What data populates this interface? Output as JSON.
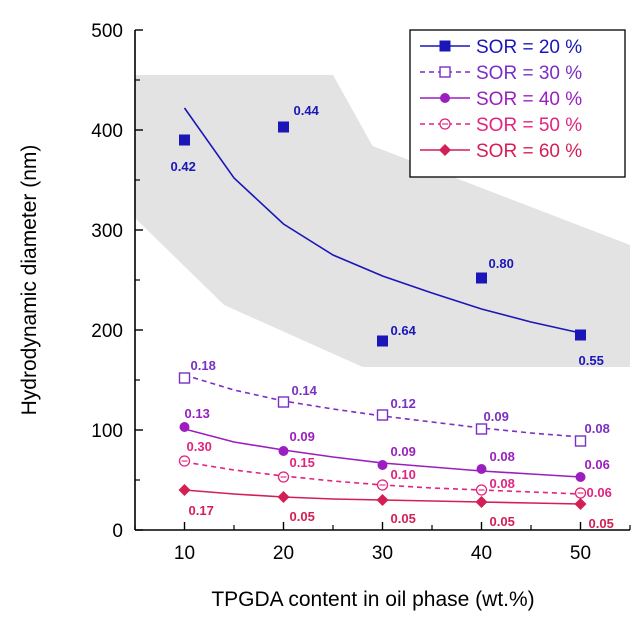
{
  "chart_data": {
    "type": "scatter",
    "xlabel": "TPGDA content in oil phase  (wt.%)",
    "ylabel": "Hydrodynamic diameter  (nm)",
    "xlim": [
      5,
      55
    ],
    "ylim": [
      0,
      500
    ],
    "x_ticks": [
      "10",
      "20",
      "30",
      "40",
      "50"
    ],
    "y_ticks": [
      "0",
      "100",
      "200",
      "300",
      "400",
      "500"
    ],
    "grid": false,
    "legend_position": "top-right",
    "shaded_region": [
      [
        5,
        455
      ],
      [
        25,
        455
      ],
      [
        29,
        384
      ],
      [
        55,
        285
      ],
      [
        55,
        163
      ],
      [
        28,
        163
      ],
      [
        14,
        225
      ],
      [
        5,
        312
      ]
    ],
    "series": [
      {
        "name": "SOR = 20 %",
        "color": "#1a16b8",
        "marker": "square-filled",
        "line": "solid",
        "x": [
          10,
          20,
          30,
          40,
          50
        ],
        "y": [
          390,
          403,
          189,
          252,
          195
        ],
        "labels": [
          "0.42",
          "0.44",
          "0.64",
          "0.80",
          "0.55"
        ],
        "fit": [
          [
            10,
            422
          ],
          [
            15,
            352
          ],
          [
            20,
            306
          ],
          [
            25,
            275
          ],
          [
            30,
            254
          ],
          [
            35,
            237
          ],
          [
            40,
            221
          ],
          [
            45,
            208
          ],
          [
            50,
            197
          ]
        ]
      },
      {
        "name": "SOR = 30 %",
        "color": "#7b2fc3",
        "marker": "square-open",
        "line": "dashed",
        "x": [
          10,
          20,
          30,
          40,
          50
        ],
        "y": [
          152,
          128,
          115,
          101,
          89
        ],
        "labels": [
          "0.18",
          "0.14",
          "0.12",
          "0.09",
          "0.08"
        ],
        "fit": [
          [
            10,
            155
          ],
          [
            15,
            140
          ],
          [
            20,
            129
          ],
          [
            25,
            121
          ],
          [
            30,
            114
          ],
          [
            35,
            108
          ],
          [
            40,
            102
          ],
          [
            45,
            97
          ],
          [
            50,
            93
          ]
        ]
      },
      {
        "name": "SOR = 40 %",
        "color": "#9b1fbf",
        "marker": "circle-filled",
        "line": "solid",
        "x": [
          10,
          20,
          30,
          40,
          50
        ],
        "y": [
          103,
          79,
          65,
          61,
          53
        ],
        "labels": [
          "0.13",
          "0.09",
          "0.09",
          "0.08",
          "0.06"
        ],
        "fit": [
          [
            10,
            101
          ],
          [
            15,
            88
          ],
          [
            20,
            80
          ],
          [
            25,
            73
          ],
          [
            30,
            67
          ],
          [
            35,
            63
          ],
          [
            40,
            59
          ],
          [
            45,
            56
          ],
          [
            50,
            53
          ]
        ]
      },
      {
        "name": "SOR = 50 %",
        "color": "#e0247f",
        "marker": "circle-open",
        "line": "dashed",
        "x": [
          10,
          20,
          30,
          40,
          50
        ],
        "y": [
          69,
          53,
          45,
          40,
          37
        ],
        "labels": [
          "0.30",
          "0.15",
          "0.10",
          "0.08",
          "0.06"
        ],
        "fit": [
          [
            10,
            68
          ],
          [
            15,
            60
          ],
          [
            20,
            54
          ],
          [
            25,
            49
          ],
          [
            30,
            45
          ],
          [
            35,
            42
          ],
          [
            40,
            40
          ],
          [
            45,
            38
          ],
          [
            50,
            36
          ]
        ]
      },
      {
        "name": "SOR = 60 %",
        "color": "#d41f55",
        "marker": "diamond-filled",
        "line": "solid",
        "x": [
          10,
          20,
          30,
          40,
          50
        ],
        "y": [
          40,
          33,
          30,
          28,
          26
        ],
        "labels": [
          "0.17",
          "0.05",
          "0.05",
          "0.05",
          "0.05"
        ],
        "fit": [
          [
            10,
            40
          ],
          [
            15,
            36
          ],
          [
            20,
            33
          ],
          [
            25,
            31
          ],
          [
            30,
            30
          ],
          [
            35,
            29
          ],
          [
            40,
            28
          ],
          [
            45,
            27
          ],
          [
            50,
            26
          ]
        ]
      }
    ]
  }
}
